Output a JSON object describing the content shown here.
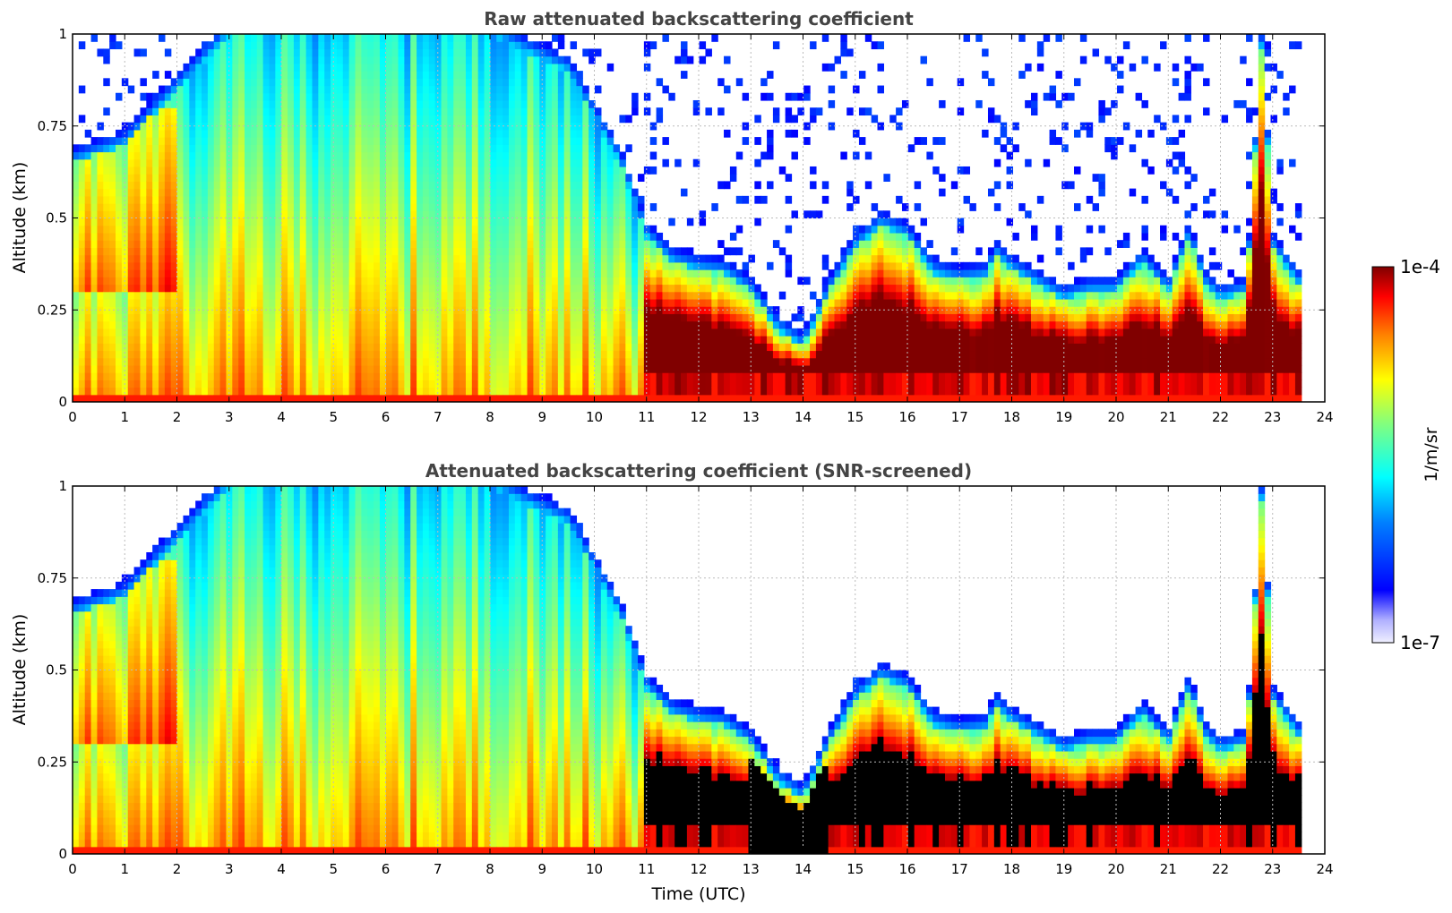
{
  "chart_data": [
    {
      "type": "heatmap",
      "title": "Raw attenuated backscattering coefficient",
      "xlabel": "",
      "ylabel": "Altitude (km)",
      "xlim": [
        0,
        24
      ],
      "ylim": [
        0,
        1
      ],
      "xticks": [
        "0",
        "1",
        "2",
        "3",
        "4",
        "5",
        "6",
        "7",
        "8",
        "9",
        "10",
        "11",
        "12",
        "13",
        "14",
        "15",
        "16",
        "17",
        "18",
        "19",
        "20",
        "21",
        "22",
        "23",
        "24"
      ],
      "yticks": [
        "0",
        "0.25",
        "0.5",
        "0.75",
        "1"
      ],
      "data_extent_hours": [
        0,
        23.55
      ],
      "boundary_layer_top_km": [
        [
          0,
          0.65
        ],
        [
          1,
          0.7
        ],
        [
          2,
          0.85
        ],
        [
          3,
          1.0
        ],
        [
          6,
          1.0
        ],
        [
          8,
          1.0
        ],
        [
          9.5,
          0.9
        ],
        [
          10.5,
          0.65
        ],
        [
          11,
          0.45
        ],
        [
          11.5,
          0.38
        ],
        [
          12,
          0.36
        ],
        [
          12.5,
          0.35
        ],
        [
          13,
          0.3
        ],
        [
          13.5,
          0.2
        ],
        [
          14,
          0.15
        ],
        [
          14.5,
          0.3
        ],
        [
          15,
          0.42
        ],
        [
          15.5,
          0.48
        ],
        [
          16,
          0.45
        ],
        [
          16.5,
          0.35
        ],
        [
          17,
          0.33
        ],
        [
          17.5,
          0.34
        ],
        [
          17.7,
          0.4
        ],
        [
          18,
          0.36
        ],
        [
          18.5,
          0.32
        ],
        [
          19,
          0.28
        ],
        [
          19.5,
          0.3
        ],
        [
          20,
          0.3
        ],
        [
          20.5,
          0.38
        ],
        [
          21,
          0.3
        ],
        [
          21.4,
          0.45
        ],
        [
          21.7,
          0.32
        ],
        [
          22,
          0.28
        ],
        [
          22.5,
          0.3
        ],
        [
          22.8,
          1.0
        ],
        [
          23,
          0.42
        ],
        [
          23.5,
          0.32
        ]
      ],
      "grid": true
    },
    {
      "type": "heatmap",
      "title": "Attenuated backscattering coefficient (SNR-screened)",
      "xlabel": "Time (UTC)",
      "ylabel": "Altitude (km)",
      "xlim": [
        0,
        24
      ],
      "ylim": [
        0,
        1
      ],
      "xticks": [
        "0",
        "1",
        "2",
        "3",
        "4",
        "5",
        "6",
        "7",
        "8",
        "9",
        "10",
        "11",
        "12",
        "13",
        "14",
        "15",
        "16",
        "17",
        "18",
        "19",
        "20",
        "21",
        "22",
        "23",
        "24"
      ],
      "yticks": [
        "0",
        "0.25",
        "0.5",
        "0.75",
        "1"
      ],
      "data_extent_hours": [
        0,
        23.55
      ],
      "screened_out_color": "#000000",
      "grid": true
    }
  ],
  "colorbar": {
    "label": "1/m/sr",
    "max_label": "1e-4",
    "min_label": "1e-7",
    "scale": "log",
    "colormap": "jet",
    "low_end_color": "#f0f0ff",
    "high_end_color": "#800000"
  }
}
